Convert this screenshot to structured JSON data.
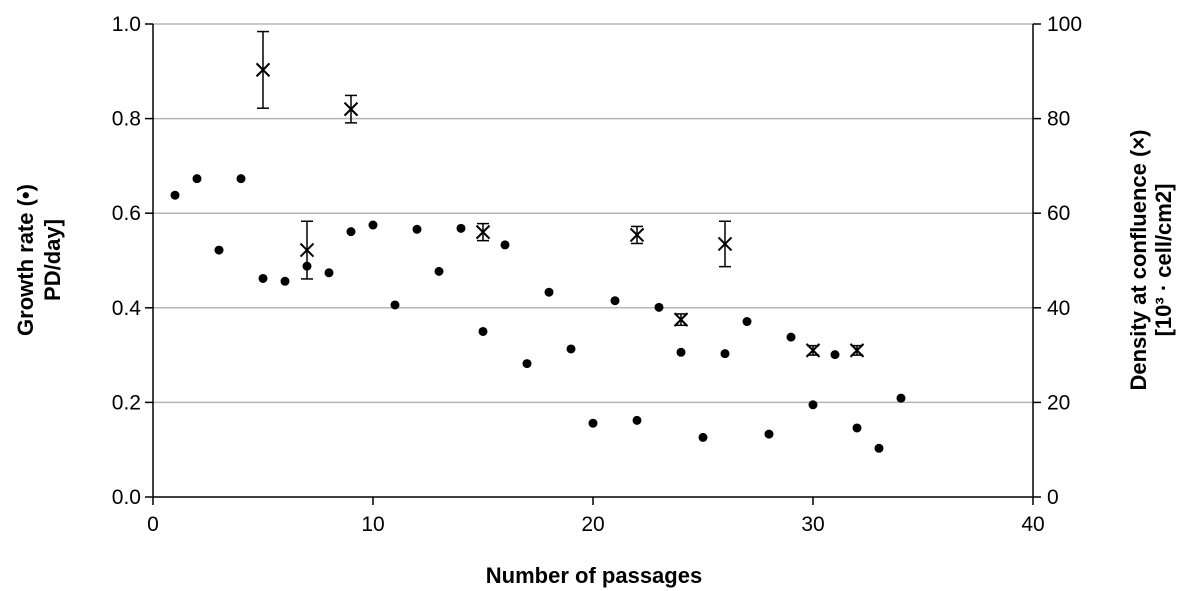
{
  "chart_data": {
    "type": "scatter",
    "xlabel": "Number of passages",
    "ylabel": [
      "Growth rate (•)",
      "PD/day]"
    ],
    "y2label": [
      "Density at confluence (×)",
      "[10³ · cell/cm2]"
    ],
    "xlim": [
      0,
      40
    ],
    "ylim": [
      0,
      1.0
    ],
    "y2lim": [
      0,
      100
    ],
    "xticks": [
      "0",
      "10",
      "20",
      "30",
      "40"
    ],
    "yticks": [
      "0.0",
      "0.2",
      "0.4",
      "0.6",
      "0.8",
      "1.0"
    ],
    "y2ticks": [
      "0",
      "20",
      "40",
      "60",
      "80",
      "100"
    ],
    "grid": true,
    "series": [
      {
        "marker": "dot",
        "axis": "left",
        "points": [
          [
            1,
            0.638
          ],
          [
            2,
            0.673
          ],
          [
            3,
            0.522
          ],
          [
            4,
            0.673
          ],
          [
            5,
            0.462
          ],
          [
            6,
            0.456
          ],
          [
            7,
            0.488
          ],
          [
            8,
            0.474
          ],
          [
            9,
            0.561
          ],
          [
            10,
            0.575
          ],
          [
            11,
            0.406
          ],
          [
            12,
            0.566
          ],
          [
            13,
            0.477
          ],
          [
            14,
            0.568
          ],
          [
            15,
            0.35
          ],
          [
            16,
            0.533
          ],
          [
            17,
            0.282
          ],
          [
            18,
            0.433
          ],
          [
            19,
            0.313
          ],
          [
            20,
            0.156
          ],
          [
            21,
            0.415
          ],
          [
            22,
            0.162
          ],
          [
            23,
            0.401
          ],
          [
            24,
            0.306
          ],
          [
            25,
            0.126
          ],
          [
            26,
            0.303
          ],
          [
            27,
            0.371
          ],
          [
            28,
            0.133
          ],
          [
            29,
            0.338
          ],
          [
            30,
            0.195
          ],
          [
            31,
            0.301
          ],
          [
            32,
            0.146
          ],
          [
            33,
            0.103
          ],
          [
            34,
            0.209
          ]
        ]
      },
      {
        "marker": "cross",
        "axis": "right",
        "points": [
          {
            "x": 5,
            "y": 90.3,
            "err": 8.1
          },
          {
            "x": 7,
            "y": 52.2,
            "err": 6.1
          },
          {
            "x": 9,
            "y": 82.0,
            "err": 2.9
          },
          {
            "x": 15,
            "y": 56.0,
            "err": 1.8
          },
          {
            "x": 22,
            "y": 55.4,
            "err": 1.8
          },
          {
            "x": 24,
            "y": 37.5,
            "err": 1.2
          },
          {
            "x": 26,
            "y": 53.5,
            "err": 4.8
          },
          {
            "x": 30,
            "y": 31.0,
            "err": 1.0
          },
          {
            "x": 32,
            "y": 31.0,
            "err": 1.0
          }
        ]
      }
    ]
  }
}
